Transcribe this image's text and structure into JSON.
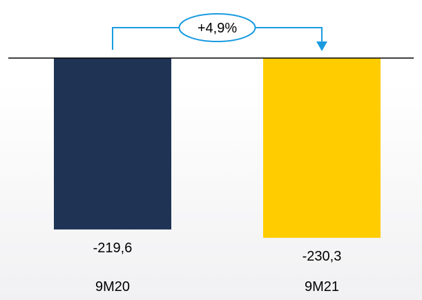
{
  "chart_data": {
    "type": "bar",
    "categories": [
      "9M20",
      "9M21"
    ],
    "values": [
      -219.6,
      -230.3
    ],
    "value_labels": [
      "-219,6",
      "-230,3"
    ],
    "colors": [
      "#1f3354",
      "#ffcc00"
    ],
    "ylim": [
      -240,
      0
    ],
    "grid": false,
    "legend": "none",
    "title": "",
    "xlabel": "",
    "ylabel": "",
    "annotations": [
      {
        "text": "+4,9%",
        "from_category": "9M20",
        "to_category": "9M21",
        "color": "#1a9be0"
      }
    ]
  }
}
